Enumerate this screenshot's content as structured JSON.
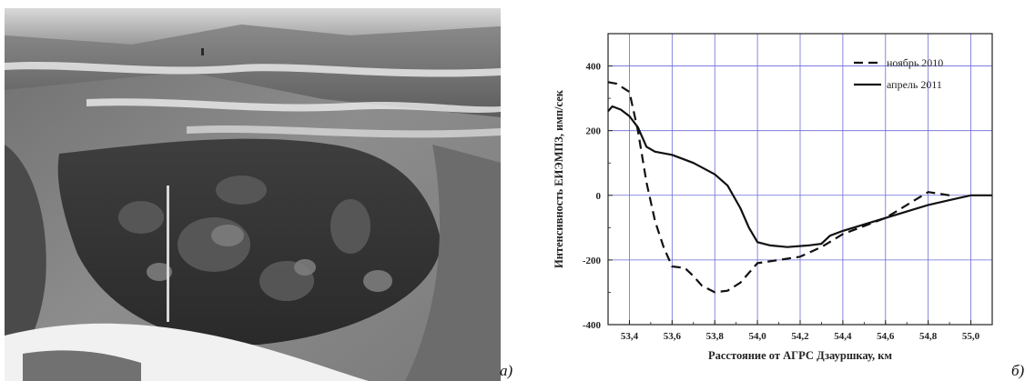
{
  "panels": {
    "photo_letter": "а)",
    "chart_letter": "б)"
  },
  "colors": {
    "grid": "#6a6ad8",
    "axis": "#222222",
    "series_nov": "#111111",
    "series_apr": "#111111"
  },
  "chart_data": {
    "type": "line",
    "xlabel": "Расстояние от АГРС Дзауршкау, км",
    "ylabel": "Интенсивность ЕИЭМПЗ, имп/сек",
    "xlim": [
      53.3,
      55.1
    ],
    "ylim": [
      -400,
      500
    ],
    "x_ticks": [
      "53,4",
      "53,6",
      "53,8",
      "54,0",
      "54,2",
      "54,4",
      "54,6",
      "54,8",
      "55,0"
    ],
    "x_tick_values": [
      53.4,
      53.6,
      53.8,
      54.0,
      54.2,
      54.4,
      54.6,
      54.8,
      55.0
    ],
    "y_ticks": [
      "400",
      "200",
      "0",
      "-200",
      "-400"
    ],
    "y_tick_values": [
      400,
      200,
      0,
      -200,
      -400
    ],
    "grid": true,
    "legend_position": "top-right",
    "series": [
      {
        "name": "ноябрь 2010",
        "style": "dashed",
        "points": [
          [
            53.3,
            350
          ],
          [
            53.34,
            345
          ],
          [
            53.4,
            320
          ],
          [
            53.44,
            200
          ],
          [
            53.48,
            40
          ],
          [
            53.52,
            -80
          ],
          [
            53.56,
            -160
          ],
          [
            53.6,
            -220
          ],
          [
            53.66,
            -225
          ],
          [
            53.7,
            -250
          ],
          [
            53.74,
            -280
          ],
          [
            53.8,
            -300
          ],
          [
            53.86,
            -295
          ],
          [
            53.92,
            -270
          ],
          [
            53.96,
            -240
          ],
          [
            54.0,
            -210
          ],
          [
            54.1,
            -200
          ],
          [
            54.2,
            -190
          ],
          [
            54.3,
            -160
          ],
          [
            54.4,
            -120
          ],
          [
            54.5,
            -95
          ],
          [
            54.6,
            -70
          ],
          [
            54.7,
            -30
          ],
          [
            54.8,
            10
          ],
          [
            54.9,
            0
          ]
        ]
      },
      {
        "name": "апрель 2011",
        "style": "solid",
        "points": [
          [
            53.3,
            260
          ],
          [
            53.32,
            275
          ],
          [
            53.36,
            265
          ],
          [
            53.4,
            245
          ],
          [
            53.44,
            210
          ],
          [
            53.48,
            150
          ],
          [
            53.52,
            135
          ],
          [
            53.6,
            125
          ],
          [
            53.7,
            100
          ],
          [
            53.8,
            65
          ],
          [
            53.86,
            30
          ],
          [
            53.92,
            -40
          ],
          [
            53.96,
            -100
          ],
          [
            54.0,
            -145
          ],
          [
            54.06,
            -155
          ],
          [
            54.14,
            -160
          ],
          [
            54.24,
            -155
          ],
          [
            54.3,
            -150
          ],
          [
            54.34,
            -125
          ],
          [
            54.4,
            -110
          ],
          [
            54.5,
            -90
          ],
          [
            54.6,
            -70
          ],
          [
            54.7,
            -50
          ],
          [
            54.8,
            -30
          ],
          [
            54.9,
            -15
          ],
          [
            55.0,
            0
          ],
          [
            55.1,
            0
          ]
        ]
      }
    ]
  }
}
